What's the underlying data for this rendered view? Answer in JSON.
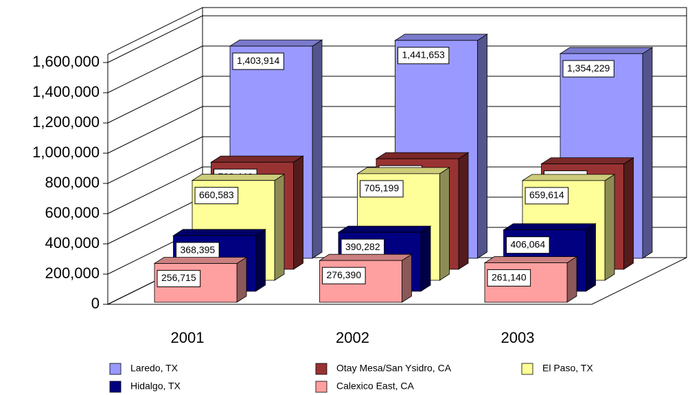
{
  "chart_data": {
    "type": "bar3d",
    "categories": [
      "2001",
      "2002",
      "2003"
    ],
    "ylim": [
      0,
      1600000
    ],
    "yticks": [
      {
        "value": 0,
        "label": "0"
      },
      {
        "value": 200000,
        "label": "200,000"
      },
      {
        "value": 400000,
        "label": "400,000"
      },
      {
        "value": 600000,
        "label": "600,000"
      },
      {
        "value": 800000,
        "label": "800,000"
      },
      {
        "value": 1000000,
        "label": "1,000,000"
      },
      {
        "value": 1200000,
        "label": "1,200,000"
      },
      {
        "value": 1400000,
        "label": "1,400,000"
      },
      {
        "value": 1600000,
        "label": "1,600,000"
      }
    ],
    "grid": true,
    "legend": "bottom",
    "series": [
      {
        "name": "Laredo, TX",
        "color": "#9999ff",
        "values": [
          1403914,
          1441653,
          1354229
        ],
        "value_labels": [
          "1,403,914",
          "1,441,653",
          "1,354,229"
        ]
      },
      {
        "name": "Otay Mesa/San Ysidro, CA",
        "color": "#993333",
        "values": [
          708446,
          731291,
          697152
        ],
        "value_labels": [
          "708,446",
          "731,291",
          "697,152"
        ]
      },
      {
        "name": "El Paso, TX",
        "color": "#ffff99",
        "values": [
          660583,
          705199,
          659614
        ],
        "value_labels": [
          "660,583",
          "705,199",
          "659,614"
        ]
      },
      {
        "name": "Hidalgo, TX",
        "color": "#000080",
        "values": [
          368395,
          390282,
          406064
        ],
        "value_labels": [
          "368,395",
          "390,282",
          "406,064"
        ]
      },
      {
        "name": "Calexico East, CA",
        "color": "#ffa0a0",
        "values": [
          256715,
          276390,
          261140
        ],
        "value_labels": [
          "256,715",
          "276,390",
          "261,140"
        ]
      }
    ]
  }
}
